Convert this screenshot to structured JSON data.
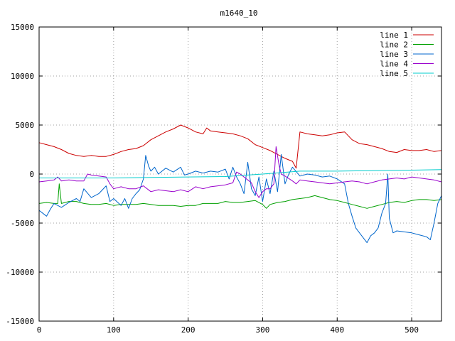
{
  "chart_data": {
    "type": "line",
    "title": "m1640_10",
    "xlabel": "",
    "ylabel": "",
    "xlim": [
      0,
      540
    ],
    "ylim": [
      -15000,
      15000
    ],
    "x_ticks": [
      0,
      100,
      200,
      300,
      400,
      500
    ],
    "y_ticks": [
      -15000,
      -10000,
      -5000,
      0,
      5000,
      10000,
      15000
    ],
    "x_tick_labels": [
      "0",
      "100",
      "200",
      "300",
      "400",
      "500"
    ],
    "y_tick_labels": [
      "-15000",
      "-10000",
      "-5000",
      "0",
      "5000",
      "10000",
      "15000"
    ],
    "grid": true,
    "legend_position": "top-right",
    "series": [
      {
        "name": "line 1",
        "color": "#cc0000",
        "points": [
          [
            0,
            3200
          ],
          [
            10,
            3000
          ],
          [
            20,
            2800
          ],
          [
            30,
            2500
          ],
          [
            40,
            2100
          ],
          [
            50,
            1900
          ],
          [
            60,
            1800
          ],
          [
            70,
            1900
          ],
          [
            80,
            1800
          ],
          [
            90,
            1800
          ],
          [
            100,
            2000
          ],
          [
            110,
            2300
          ],
          [
            120,
            2500
          ],
          [
            130,
            2600
          ],
          [
            140,
            2900
          ],
          [
            150,
            3500
          ],
          [
            160,
            3900
          ],
          [
            170,
            4300
          ],
          [
            180,
            4600
          ],
          [
            190,
            5000
          ],
          [
            200,
            4700
          ],
          [
            210,
            4300
          ],
          [
            220,
            4100
          ],
          [
            225,
            4700
          ],
          [
            230,
            4400
          ],
          [
            240,
            4300
          ],
          [
            250,
            4200
          ],
          [
            260,
            4100
          ],
          [
            270,
            3900
          ],
          [
            280,
            3600
          ],
          [
            290,
            3000
          ],
          [
            300,
            2700
          ],
          [
            310,
            2400
          ],
          [
            320,
            2000
          ],
          [
            330,
            1600
          ],
          [
            340,
            1300
          ],
          [
            345,
            600
          ],
          [
            350,
            4300
          ],
          [
            360,
            4100
          ],
          [
            370,
            4000
          ],
          [
            380,
            3900
          ],
          [
            390,
            4000
          ],
          [
            400,
            4200
          ],
          [
            410,
            4300
          ],
          [
            420,
            3500
          ],
          [
            430,
            3100
          ],
          [
            440,
            3000
          ],
          [
            450,
            2800
          ],
          [
            460,
            2600
          ],
          [
            470,
            2300
          ],
          [
            480,
            2200
          ],
          [
            490,
            2500
          ],
          [
            500,
            2400
          ],
          [
            510,
            2400
          ],
          [
            520,
            2500
          ],
          [
            530,
            2300
          ],
          [
            540,
            2400
          ]
        ]
      },
      {
        "name": "line 2",
        "color": "#00a000",
        "points": [
          [
            0,
            -3000
          ],
          [
            10,
            -2900
          ],
          [
            20,
            -3000
          ],
          [
            25,
            -3000
          ],
          [
            27,
            -1000
          ],
          [
            30,
            -3000
          ],
          [
            40,
            -2800
          ],
          [
            50,
            -2800
          ],
          [
            60,
            -3000
          ],
          [
            70,
            -3100
          ],
          [
            80,
            -3100
          ],
          [
            90,
            -3000
          ],
          [
            100,
            -3200
          ],
          [
            110,
            -3100
          ],
          [
            120,
            -3100
          ],
          [
            130,
            -3100
          ],
          [
            140,
            -3000
          ],
          [
            150,
            -3100
          ],
          [
            160,
            -3200
          ],
          [
            170,
            -3200
          ],
          [
            180,
            -3200
          ],
          [
            190,
            -3300
          ],
          [
            200,
            -3200
          ],
          [
            210,
            -3200
          ],
          [
            220,
            -3000
          ],
          [
            230,
            -3000
          ],
          [
            240,
            -3000
          ],
          [
            250,
            -2800
          ],
          [
            260,
            -2900
          ],
          [
            270,
            -2900
          ],
          [
            280,
            -2800
          ],
          [
            290,
            -2700
          ],
          [
            300,
            -3100
          ],
          [
            305,
            -3500
          ],
          [
            310,
            -3100
          ],
          [
            320,
            -2900
          ],
          [
            330,
            -2800
          ],
          [
            340,
            -2600
          ],
          [
            350,
            -2500
          ],
          [
            360,
            -2400
          ],
          [
            370,
            -2200
          ],
          [
            380,
            -2400
          ],
          [
            390,
            -2600
          ],
          [
            400,
            -2700
          ],
          [
            410,
            -2900
          ],
          [
            420,
            -3100
          ],
          [
            430,
            -3300
          ],
          [
            440,
            -3500
          ],
          [
            450,
            -3300
          ],
          [
            460,
            -3100
          ],
          [
            470,
            -2900
          ],
          [
            480,
            -2800
          ],
          [
            490,
            -2900
          ],
          [
            500,
            -2700
          ],
          [
            510,
            -2600
          ],
          [
            520,
            -2600
          ],
          [
            530,
            -2700
          ],
          [
            540,
            -2600
          ]
        ]
      },
      {
        "name": "line 3",
        "color": "#0066cc",
        "points": [
          [
            0,
            -3700
          ],
          [
            5,
            -4000
          ],
          [
            10,
            -4300
          ],
          [
            15,
            -3600
          ],
          [
            20,
            -3000
          ],
          [
            30,
            -3400
          ],
          [
            40,
            -2900
          ],
          [
            50,
            -2500
          ],
          [
            55,
            -2800
          ],
          [
            60,
            -1500
          ],
          [
            70,
            -2400
          ],
          [
            80,
            -2000
          ],
          [
            90,
            -1200
          ],
          [
            95,
            -2800
          ],
          [
            100,
            -2500
          ],
          [
            110,
            -3200
          ],
          [
            115,
            -2500
          ],
          [
            120,
            -3500
          ],
          [
            125,
            -2500
          ],
          [
            130,
            -2000
          ],
          [
            135,
            -1600
          ],
          [
            140,
            -500
          ],
          [
            143,
            1900
          ],
          [
            147,
            800
          ],
          [
            150,
            300
          ],
          [
            155,
            700
          ],
          [
            160,
            0
          ],
          [
            170,
            600
          ],
          [
            180,
            200
          ],
          [
            190,
            700
          ],
          [
            195,
            -100
          ],
          [
            200,
            0
          ],
          [
            210,
            300
          ],
          [
            220,
            100
          ],
          [
            230,
            300
          ],
          [
            240,
            200
          ],
          [
            250,
            500
          ],
          [
            255,
            -500
          ],
          [
            260,
            700
          ],
          [
            265,
            -300
          ],
          [
            270,
            -1000
          ],
          [
            275,
            -2000
          ],
          [
            280,
            1200
          ],
          [
            285,
            -1500
          ],
          [
            290,
            -2200
          ],
          [
            295,
            -300
          ],
          [
            300,
            -2800
          ],
          [
            305,
            -500
          ],
          [
            310,
            -2000
          ],
          [
            315,
            300
          ],
          [
            320,
            -1800
          ],
          [
            325,
            2000
          ],
          [
            330,
            -1000
          ],
          [
            335,
            0
          ],
          [
            340,
            700
          ],
          [
            350,
            -200
          ],
          [
            360,
            0
          ],
          [
            370,
            -100
          ],
          [
            380,
            -300
          ],
          [
            390,
            -200
          ],
          [
            400,
            -500
          ],
          [
            410,
            -1000
          ],
          [
            415,
            -3000
          ],
          [
            420,
            -4300
          ],
          [
            425,
            -5500
          ],
          [
            430,
            -6000
          ],
          [
            435,
            -6500
          ],
          [
            440,
            -7000
          ],
          [
            445,
            -6300
          ],
          [
            450,
            -6000
          ],
          [
            455,
            -5500
          ],
          [
            460,
            -4000
          ],
          [
            465,
            -3000
          ],
          [
            468,
            0
          ],
          [
            470,
            -4500
          ],
          [
            475,
            -6000
          ],
          [
            480,
            -5800
          ],
          [
            490,
            -5900
          ],
          [
            500,
            -6000
          ],
          [
            510,
            -6200
          ],
          [
            520,
            -6400
          ],
          [
            525,
            -6700
          ],
          [
            530,
            -5000
          ],
          [
            535,
            -3000
          ],
          [
            540,
            -2200
          ]
        ]
      },
      {
        "name": "line 4",
        "color": "#9900cc",
        "points": [
          [
            0,
            -800
          ],
          [
            10,
            -700
          ],
          [
            20,
            -600
          ],
          [
            25,
            -300
          ],
          [
            30,
            -700
          ],
          [
            40,
            -600
          ],
          [
            50,
            -700
          ],
          [
            60,
            -700
          ],
          [
            65,
            0
          ],
          [
            70,
            -100
          ],
          [
            80,
            -200
          ],
          [
            90,
            -300
          ],
          [
            95,
            -1000
          ],
          [
            100,
            -1500
          ],
          [
            110,
            -1300
          ],
          [
            120,
            -1500
          ],
          [
            130,
            -1500
          ],
          [
            140,
            -1200
          ],
          [
            150,
            -1800
          ],
          [
            160,
            -1600
          ],
          [
            170,
            -1700
          ],
          [
            180,
            -1800
          ],
          [
            190,
            -1600
          ],
          [
            200,
            -1800
          ],
          [
            210,
            -1300
          ],
          [
            220,
            -1500
          ],
          [
            230,
            -1300
          ],
          [
            240,
            -1200
          ],
          [
            250,
            -1100
          ],
          [
            260,
            -900
          ],
          [
            265,
            200
          ],
          [
            270,
            0
          ],
          [
            280,
            -600
          ],
          [
            285,
            -900
          ],
          [
            290,
            -1800
          ],
          [
            295,
            -2400
          ],
          [
            300,
            -1800
          ],
          [
            305,
            -1500
          ],
          [
            310,
            -1500
          ],
          [
            315,
            -1000
          ],
          [
            318,
            2800
          ],
          [
            322,
            900
          ],
          [
            325,
            0
          ],
          [
            330,
            -200
          ],
          [
            340,
            -700
          ],
          [
            345,
            -1000
          ],
          [
            350,
            -600
          ],
          [
            360,
            -700
          ],
          [
            370,
            -800
          ],
          [
            380,
            -900
          ],
          [
            390,
            -1000
          ],
          [
            400,
            -900
          ],
          [
            410,
            -800
          ],
          [
            420,
            -700
          ],
          [
            430,
            -800
          ],
          [
            440,
            -1000
          ],
          [
            450,
            -800
          ],
          [
            460,
            -600
          ],
          [
            470,
            -500
          ],
          [
            480,
            -400
          ],
          [
            490,
            -500
          ],
          [
            500,
            -300
          ],
          [
            510,
            -400
          ],
          [
            520,
            -500
          ],
          [
            530,
            -600
          ],
          [
            540,
            -800
          ]
        ]
      },
      {
        "name": "line 5",
        "color": "#00cccc",
        "points": [
          [
            0,
            -400
          ],
          [
            50,
            -400
          ],
          [
            100,
            -400
          ],
          [
            150,
            -350
          ],
          [
            200,
            -300
          ],
          [
            250,
            -250
          ],
          [
            300,
            0
          ],
          [
            350,
            300
          ],
          [
            400,
            300
          ],
          [
            450,
            350
          ],
          [
            500,
            400
          ],
          [
            540,
            450
          ]
        ]
      }
    ]
  }
}
